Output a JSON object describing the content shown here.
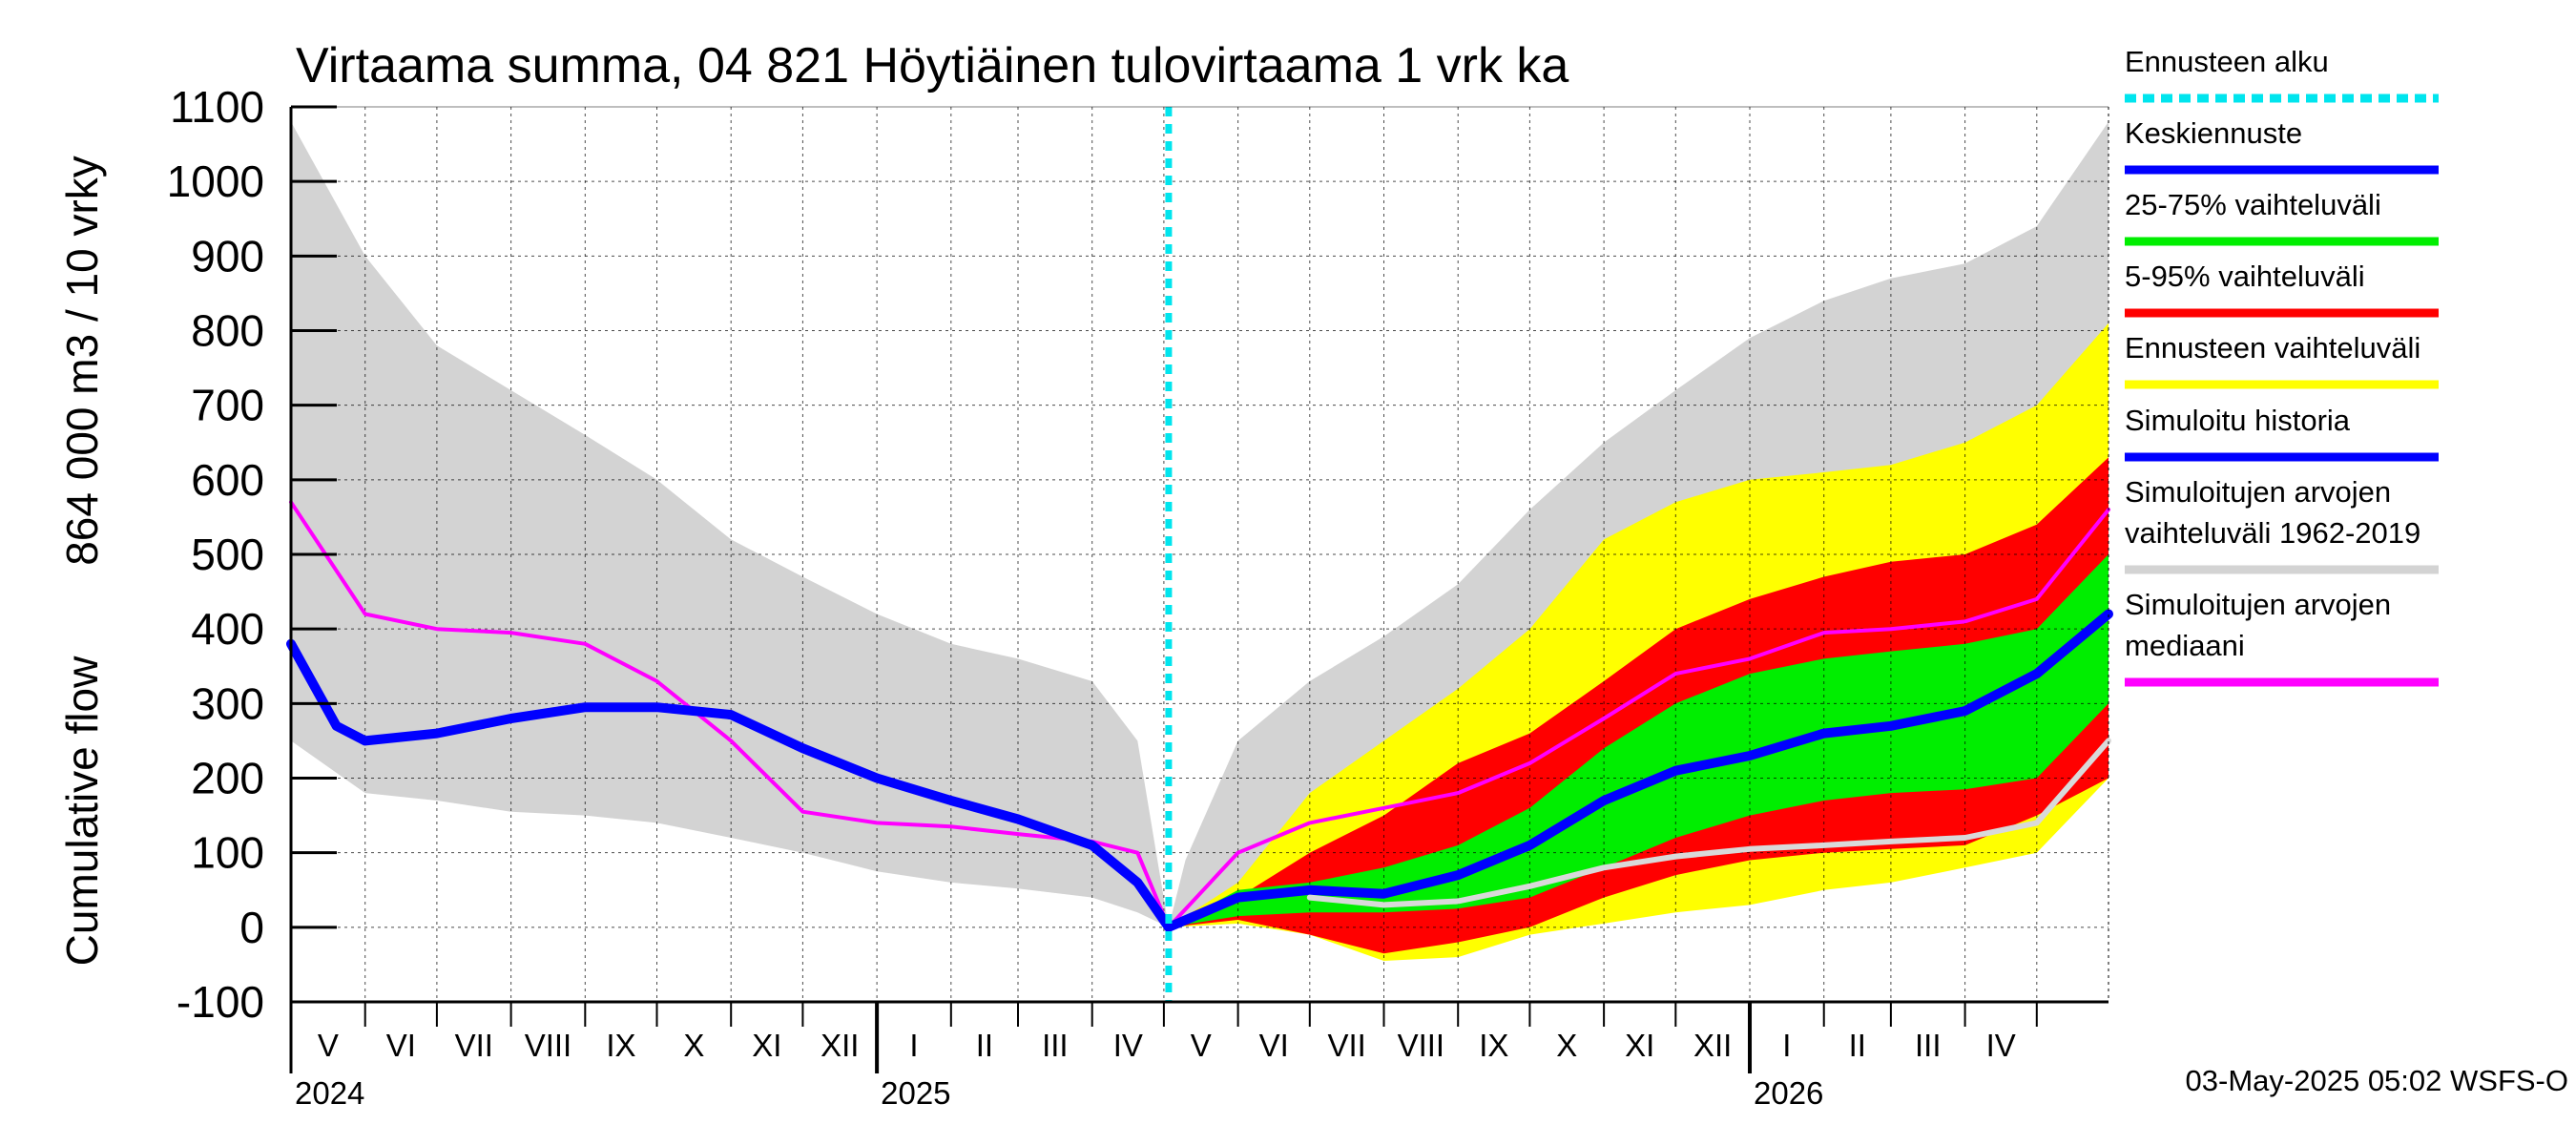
{
  "chart_data": {
    "type": "area",
    "title": "Virtaama summa, 04 821 Höytiäinen tulovirtaama 1 vrk ka",
    "ylabel_line1": "864 000 m3 / 10 vrky",
    "ylabel_line2": "Cumulative flow",
    "ylim": [
      -100,
      1100
    ],
    "yticks": [
      "-100",
      "0",
      "100",
      "200",
      "300",
      "400",
      "500",
      "600",
      "700",
      "800",
      "900",
      "1000",
      "1100"
    ],
    "xlim": [
      "2024-05-01",
      "2026-05-31"
    ],
    "forecast_start": "2025-05-03",
    "months": [
      "V",
      "VI",
      "VII",
      "VIII",
      "IX",
      "X",
      "XI",
      "XII",
      "I",
      "II",
      "III",
      "IV",
      "V",
      "VI",
      "VII",
      "VIII",
      "IX",
      "X",
      "XI",
      "XII",
      "I",
      "II",
      "III",
      "IV"
    ],
    "years": [
      "2024",
      "2025",
      "2026"
    ],
    "grid": true,
    "legend_position": "right",
    "timestamp": "03-May-2025 05:02 WSFS-O",
    "series": [
      {
        "name": "Simuloitujen arvojen vaihteluväli 1962-2019",
        "kind": "band",
        "x": [
          "2024-05-01",
          "2024-06-01",
          "2024-07-01",
          "2024-08-01",
          "2024-09-01",
          "2024-10-01",
          "2024-11-01",
          "2024-12-01",
          "2025-01-01",
          "2025-02-01",
          "2025-03-01",
          "2025-04-01",
          "2025-04-20",
          "2025-05-03",
          "2025-05-10",
          "2025-06-01",
          "2025-07-01",
          "2025-08-01",
          "2025-09-01",
          "2025-10-01",
          "2025-11-01",
          "2025-12-01",
          "2026-01-01",
          "2026-02-01",
          "2026-03-01",
          "2026-04-01",
          "2026-05-01",
          "2026-05-31"
        ],
        "upper": [
          1080,
          900,
          780,
          720,
          660,
          600,
          520,
          470,
          420,
          380,
          360,
          330,
          250,
          0,
          90,
          250,
          330,
          390,
          460,
          560,
          650,
          720,
          790,
          840,
          870,
          890,
          940,
          1080
        ],
        "lower": [
          250,
          180,
          170,
          155,
          150,
          140,
          120,
          100,
          75,
          60,
          52,
          40,
          20,
          0,
          2,
          5,
          10,
          15,
          25,
          40,
          60,
          80,
          95,
          105,
          110,
          120,
          140,
          210
        ]
      },
      {
        "name": "Ennusteen vaihteluväli",
        "kind": "band",
        "x": [
          "2025-05-03",
          "2025-06-01",
          "2025-07-01",
          "2025-08-01",
          "2025-09-01",
          "2025-10-01",
          "2025-11-01",
          "2025-12-01",
          "2026-01-01",
          "2026-02-01",
          "2026-03-01",
          "2026-04-01",
          "2026-05-01",
          "2026-05-31"
        ],
        "upper": [
          0,
          60,
          180,
          250,
          320,
          400,
          520,
          570,
          600,
          610,
          620,
          650,
          700,
          810
        ],
        "lower": [
          0,
          5,
          -10,
          -45,
          -40,
          -10,
          5,
          20,
          30,
          50,
          60,
          80,
          100,
          200
        ]
      },
      {
        "name": "5-95% vaihteluväli",
        "kind": "band",
        "x": [
          "2025-05-03",
          "2025-06-01",
          "2025-07-01",
          "2025-08-01",
          "2025-09-01",
          "2025-10-01",
          "2025-11-01",
          "2025-12-01",
          "2026-01-01",
          "2026-02-01",
          "2026-03-01",
          "2026-04-01",
          "2026-05-01",
          "2026-05-31"
        ],
        "upper": [
          0,
          40,
          100,
          150,
          220,
          260,
          330,
          400,
          440,
          470,
          490,
          500,
          540,
          630
        ],
        "lower": [
          0,
          10,
          -10,
          -35,
          -20,
          0,
          40,
          70,
          90,
          100,
          105,
          110,
          150,
          200
        ]
      },
      {
        "name": "25-75% vaihteluväli",
        "kind": "band",
        "x": [
          "2025-05-03",
          "2025-06-01",
          "2025-07-01",
          "2025-08-01",
          "2025-09-01",
          "2025-10-01",
          "2025-11-01",
          "2025-12-01",
          "2026-01-01",
          "2026-02-01",
          "2026-03-01",
          "2026-04-01",
          "2026-05-01",
          "2026-05-31"
        ],
        "upper": [
          0,
          50,
          60,
          80,
          110,
          160,
          240,
          300,
          340,
          360,
          370,
          380,
          400,
          500
        ],
        "lower": [
          0,
          15,
          20,
          20,
          25,
          40,
          80,
          120,
          150,
          170,
          180,
          185,
          200,
          300
        ]
      },
      {
        "name": "Simuloitujen arvojen mediaani",
        "kind": "line",
        "color": "#ff00ff",
        "x": [
          "2024-05-01",
          "2024-06-01",
          "2024-07-01",
          "2024-08-01",
          "2024-09-01",
          "2024-10-01",
          "2024-11-01",
          "2024-12-01",
          "2025-01-01",
          "2025-02-01",
          "2025-03-01",
          "2025-04-01",
          "2025-04-20",
          "2025-05-03",
          "2025-06-01",
          "2025-07-01",
          "2025-08-01",
          "2025-09-01",
          "2025-10-01",
          "2025-11-01",
          "2025-12-01",
          "2026-01-01",
          "2026-02-01",
          "2026-03-01",
          "2026-04-01",
          "2026-05-01",
          "2026-05-31"
        ],
        "y": [
          570,
          420,
          400,
          395,
          380,
          330,
          250,
          155,
          140,
          135,
          125,
          115,
          100,
          0,
          100,
          140,
          160,
          180,
          220,
          280,
          340,
          360,
          395,
          400,
          410,
          440,
          560
        ]
      },
      {
        "name": "Simuloitu historia",
        "kind": "line",
        "color": "#0000ff",
        "x": [
          "2024-05-01",
          "2024-05-20",
          "2024-06-01",
          "2024-07-01",
          "2024-08-01",
          "2024-09-01",
          "2024-10-01",
          "2024-11-01",
          "2024-12-01",
          "2025-01-01",
          "2025-02-01",
          "2025-03-01",
          "2025-04-01",
          "2025-04-20",
          "2025-05-03"
        ],
        "y": [
          380,
          270,
          250,
          260,
          280,
          295,
          295,
          285,
          240,
          200,
          170,
          145,
          110,
          60,
          0
        ]
      },
      {
        "name": "Keskiennuste",
        "kind": "line",
        "color": "#0000ff",
        "x": [
          "2025-05-03",
          "2025-06-01",
          "2025-07-01",
          "2025-08-01",
          "2025-09-01",
          "2025-10-01",
          "2025-11-01",
          "2025-12-01",
          "2026-01-01",
          "2026-02-01",
          "2026-03-01",
          "2026-04-01",
          "2026-05-01",
          "2026-05-31"
        ],
        "y": [
          0,
          40,
          50,
          45,
          70,
          110,
          170,
          210,
          230,
          260,
          270,
          290,
          340,
          420
        ]
      },
      {
        "name": "",
        "kind": "line",
        "color": "#d9d9d9",
        "x": [
          "2025-07-01",
          "2025-08-01",
          "2025-09-01",
          "2025-10-01",
          "2025-11-01",
          "2025-12-01",
          "2026-01-01",
          "2026-02-01",
          "2026-03-01",
          "2026-04-01",
          "2026-05-01",
          "2026-05-31"
        ],
        "y": [
          40,
          30,
          35,
          55,
          80,
          95,
          105,
          110,
          115,
          120,
          140,
          250
        ]
      }
    ]
  },
  "legend": [
    {
      "label": "Ennusteen alku",
      "color": "#00e5ee",
      "style": "dashed"
    },
    {
      "label": "Keskiennuste",
      "color": "#0000ff",
      "style": "solid"
    },
    {
      "label": "25-75% vaihteluväli",
      "color": "#00ee00",
      "style": "solid"
    },
    {
      "label": "5-95% vaihteluväli",
      "color": "#ff0000",
      "style": "solid"
    },
    {
      "label": "Ennusteen vaihteluväli",
      "color": "#ffff00",
      "style": "solid"
    },
    {
      "label": "Simuloitu historia",
      "color": "#0000ff",
      "style": "solid"
    },
    {
      "label": "Simuloitujen arvojen",
      "label2": "vaihteluväli 1962-2019",
      "color": "#d3d3d3",
      "style": "solid"
    },
    {
      "label": "Simuloitujen arvojen",
      "label2": "mediaani",
      "color": "#ff00ff",
      "style": "solid"
    }
  ],
  "colors": {
    "envelope": "#d3d3d3",
    "forecast_range": "#ffff00",
    "p5_95": "#ff0000",
    "p25_75": "#00ee00",
    "median": "#ff00ff",
    "history": "#0000ff",
    "forecast_mean": "#0000ff",
    "forecast_start": "#00e5ee",
    "grid": "#000000"
  }
}
